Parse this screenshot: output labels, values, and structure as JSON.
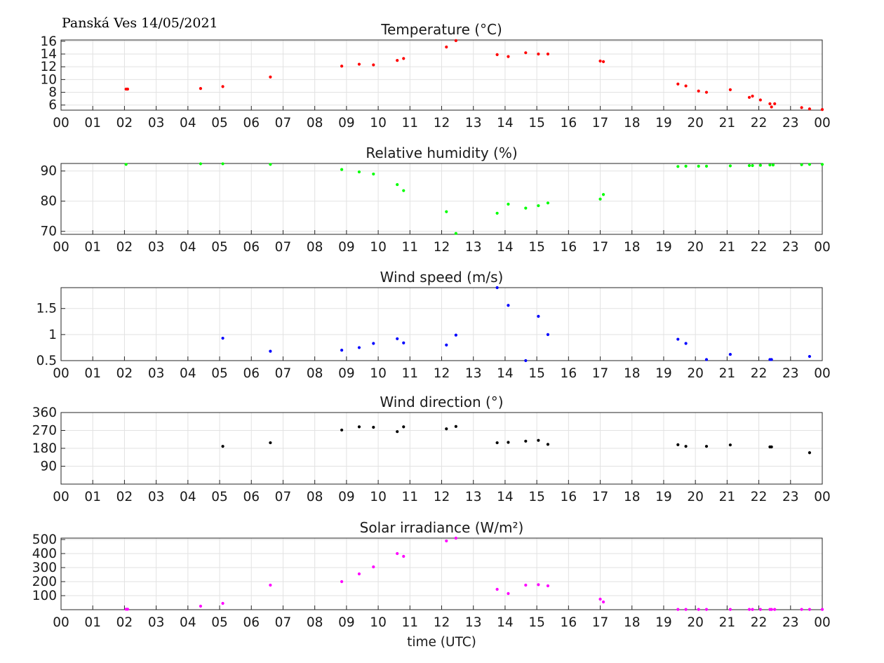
{
  "header": {
    "station_label": "Panská Ves 14/05/2021"
  },
  "chart_data": [
    {
      "type": "scatter",
      "title": "Temperature (°C)",
      "xlabel": "",
      "color": "#ff0000",
      "xlim": [
        0,
        24
      ],
      "ylim": [
        5.2,
        16.2
      ],
      "yticks": [
        6,
        8,
        10,
        12,
        14,
        16
      ],
      "ytick_labels": [
        "6",
        "8",
        "10",
        "12",
        "14",
        "16"
      ],
      "xtick_labels": [
        "00",
        "01",
        "02",
        "03",
        "04",
        "05",
        "06",
        "07",
        "08",
        "09",
        "10",
        "11",
        "12",
        "13",
        "14",
        "15",
        "16",
        "17",
        "18",
        "19",
        "20",
        "21",
        "22",
        "23",
        "00"
      ],
      "grid": true,
      "x": [
        2.05,
        2.1,
        4.4,
        5.1,
        6.6,
        8.85,
        9.4,
        9.85,
        10.6,
        10.8,
        12.15,
        12.45,
        13.75,
        14.1,
        14.65,
        15.05,
        15.35,
        17.0,
        17.1,
        19.45,
        19.7,
        20.1,
        20.35,
        21.1,
        21.7,
        21.8,
        22.05,
        22.35,
        22.4,
        22.5,
        23.35,
        23.6,
        24.0
      ],
      "y": [
        8.5,
        8.5,
        8.6,
        8.9,
        10.4,
        12.1,
        12.4,
        12.3,
        13.0,
        13.3,
        15.1,
        16.1,
        13.9,
        13.6,
        14.2,
        14.0,
        14.0,
        12.9,
        12.8,
        9.3,
        9.0,
        8.2,
        8.0,
        8.4,
        7.2,
        7.4,
        6.8,
        6.2,
        5.7,
        6.2,
        5.6,
        5.4,
        5.3
      ]
    },
    {
      "type": "scatter",
      "title": "Relative humidity (%)",
      "xlabel": "",
      "color": "#00ff00",
      "xlim": [
        0,
        24
      ],
      "ylim": [
        69,
        92.5
      ],
      "yticks": [
        70,
        80,
        90
      ],
      "ytick_labels": [
        "70",
        "80",
        "90"
      ],
      "xtick_labels": [
        "00",
        "01",
        "02",
        "03",
        "04",
        "05",
        "06",
        "07",
        "08",
        "09",
        "10",
        "11",
        "12",
        "13",
        "14",
        "15",
        "16",
        "17",
        "18",
        "19",
        "20",
        "21",
        "22",
        "23",
        "00"
      ],
      "grid": true,
      "x": [
        2.05,
        4.4,
        5.1,
        6.6,
        8.85,
        9.4,
        9.85,
        10.6,
        10.8,
        12.15,
        12.45,
        13.75,
        14.1,
        14.65,
        15.05,
        15.35,
        17.0,
        17.1,
        19.45,
        19.7,
        20.1,
        20.35,
        21.1,
        21.7,
        21.8,
        22.05,
        22.35,
        22.45,
        23.35,
        23.6,
        24.0
      ],
      "y": [
        92.2,
        92.4,
        92.4,
        92.2,
        90.5,
        89.7,
        89.0,
        85.5,
        83.5,
        76.5,
        69.3,
        76.0,
        79.0,
        77.7,
        78.5,
        79.4,
        80.7,
        82.2,
        91.5,
        91.6,
        91.6,
        91.6,
        91.7,
        91.8,
        91.8,
        91.9,
        92.0,
        92.0,
        92.1,
        92.2,
        92.2
      ]
    },
    {
      "type": "scatter",
      "title": "Wind speed (m/s)",
      "xlabel": "",
      "color": "#0000ff",
      "xlim": [
        0,
        24
      ],
      "ylim": [
        0.5,
        1.9
      ],
      "yticks": [
        0.5,
        1,
        1.5
      ],
      "ytick_labels": [
        "0.5",
        "1",
        "1.5"
      ],
      "xtick_labels": [
        "00",
        "01",
        "02",
        "03",
        "04",
        "05",
        "06",
        "07",
        "08",
        "09",
        "10",
        "11",
        "12",
        "13",
        "14",
        "15",
        "16",
        "17",
        "18",
        "19",
        "20",
        "21",
        "22",
        "23",
        "00"
      ],
      "grid": true,
      "x": [
        5.1,
        6.6,
        8.85,
        9.4,
        9.85,
        10.6,
        10.8,
        12.15,
        12.45,
        13.75,
        14.1,
        14.65,
        15.05,
        15.35,
        19.45,
        19.7,
        20.35,
        21.1,
        22.35,
        22.4,
        23.6
      ],
      "y": [
        0.93,
        0.68,
        0.7,
        0.75,
        0.83,
        0.92,
        0.84,
        0.8,
        0.99,
        1.9,
        1.56,
        0.5,
        1.35,
        1.0,
        0.91,
        0.83,
        0.52,
        0.62,
        0.52,
        0.52,
        0.58
      ]
    },
    {
      "type": "scatter",
      "title": "Wind direction (°)",
      "xlabel": "",
      "color": "#000000",
      "xlim": [
        0,
        24
      ],
      "ylim": [
        0,
        360
      ],
      "yticks": [
        90,
        180,
        270,
        360
      ],
      "ytick_labels": [
        "90",
        "180",
        "270",
        "360"
      ],
      "xtick_labels": [
        "00",
        "01",
        "02",
        "03",
        "04",
        "05",
        "06",
        "07",
        "08",
        "09",
        "10",
        "11",
        "12",
        "13",
        "14",
        "15",
        "16",
        "17",
        "18",
        "19",
        "20",
        "21",
        "22",
        "23",
        "00"
      ],
      "grid": true,
      "x": [
        5.1,
        6.6,
        8.85,
        9.4,
        9.85,
        10.6,
        10.8,
        12.15,
        12.45,
        13.75,
        14.1,
        14.65,
        15.05,
        15.35,
        19.45,
        19.7,
        20.35,
        21.1,
        22.35,
        22.4,
        23.6
      ],
      "y": [
        190,
        208,
        272,
        288,
        286,
        264,
        288,
        278,
        290,
        208,
        210,
        216,
        220,
        200,
        198,
        190,
        190,
        197,
        187,
        187,
        158
      ]
    },
    {
      "type": "scatter",
      "title": "Solar irradiance (W/m²)",
      "xlabel": "time (UTC)",
      "color": "#ff00ff",
      "xlim": [
        0,
        24
      ],
      "ylim": [
        0,
        510
      ],
      "yticks": [
        100,
        200,
        300,
        400,
        500
      ],
      "ytick_labels": [
        "100",
        "200",
        "300",
        "400",
        "500"
      ],
      "xtick_labels": [
        "00",
        "01",
        "02",
        "03",
        "04",
        "05",
        "06",
        "07",
        "08",
        "09",
        "10",
        "11",
        "12",
        "13",
        "14",
        "15",
        "16",
        "17",
        "18",
        "19",
        "20",
        "21",
        "22",
        "23",
        "00"
      ],
      "grid": true,
      "x": [
        2.05,
        2.1,
        4.4,
        5.1,
        6.6,
        8.85,
        9.4,
        9.85,
        10.6,
        10.8,
        12.15,
        12.45,
        13.75,
        14.1,
        14.65,
        15.05,
        15.35,
        17.0,
        17.1,
        19.45,
        19.7,
        20.1,
        20.35,
        21.1,
        21.7,
        21.8,
        22.05,
        22.35,
        22.4,
        22.5,
        23.35,
        23.6,
        24.0
      ],
      "y": [
        3,
        3,
        25,
        45,
        175,
        200,
        255,
        305,
        400,
        380,
        490,
        510,
        145,
        115,
        175,
        178,
        170,
        75,
        55,
        2,
        2,
        2,
        2,
        2,
        2,
        2,
        2,
        2,
        2,
        2,
        2,
        2,
        2
      ]
    }
  ]
}
